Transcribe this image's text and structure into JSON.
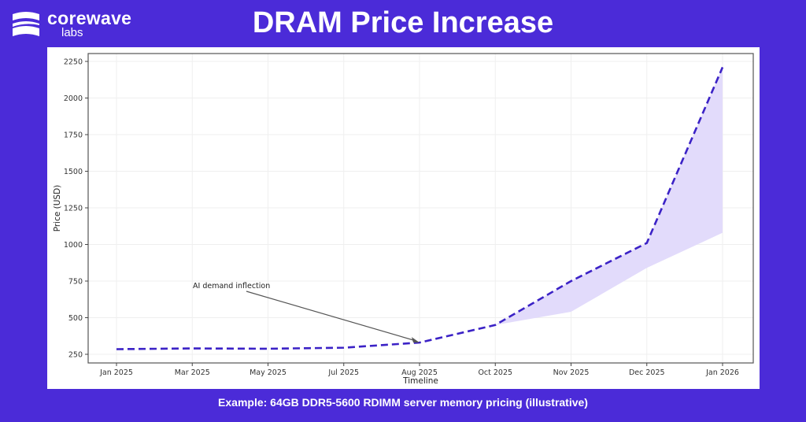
{
  "logo": {
    "name": "corewave",
    "sub": "labs"
  },
  "title": "DRAM Price Increase",
  "caption": "Example: 64GB DDR5-5600 RDIMM server memory pricing (illustrative)",
  "colors": {
    "background": "#4b2bd8",
    "line": "#3b22c6",
    "band": "#e2dbfb"
  },
  "chart_data": {
    "type": "line",
    "title": "",
    "xlabel": "Timeline",
    "ylabel": "Price (USD)",
    "categories": [
      "Jan 2025",
      "Mar 2025",
      "May 2025",
      "Jul 2025",
      "Aug 2025",
      "Oct 2025",
      "Nov 2025",
      "Dec 2025",
      "Jan 2026"
    ],
    "yticks": [
      250,
      500,
      750,
      1000,
      1250,
      1500,
      1750,
      2000,
      2250
    ],
    "ylim": [
      190,
      2300
    ],
    "grid": true,
    "series": [
      {
        "values": [
          285,
          290,
          288,
          295,
          330,
          450,
          750,
          1010,
          2210
        ],
        "style": "dashed"
      }
    ],
    "band": {
      "start_index": 5,
      "upper": [
        450,
        750,
        1010,
        2210
      ],
      "lower": [
        450,
        540,
        840,
        1080
      ]
    },
    "annotation": {
      "text": "AI demand inflection",
      "target": "Aug 2025",
      "target_value": 330
    }
  }
}
